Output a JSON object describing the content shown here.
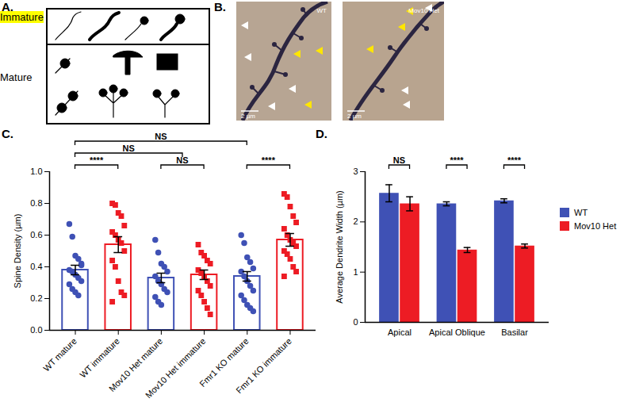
{
  "panels": {
    "A": {
      "title": "A.",
      "rows": [
        {
          "label": "Immature",
          "highlight": "#ffff00"
        },
        {
          "label": "Mature"
        }
      ]
    },
    "B": {
      "title": "B.",
      "images": [
        {
          "label": "WT",
          "scale_bar": "2 µm"
        },
        {
          "label": "Mov10 Het",
          "scale_bar": "2 µm"
        }
      ]
    }
  },
  "chart_data": [
    {
      "type": "bar",
      "title": "C.",
      "ylabel": "Spine Density (µm)",
      "categories": [
        "WT mature",
        "WT immature",
        "Mov10 Het mature",
        "Mov10 Het immature",
        "Fmr1 KO mature",
        "Fmr1 KO immature"
      ],
      "values": [
        0.38,
        0.54,
        0.33,
        0.35,
        0.34,
        0.57
      ],
      "errors": [
        0.03,
        0.05,
        0.03,
        0.03,
        0.03,
        0.04
      ],
      "points": [
        [
          0.67,
          0.59,
          0.47,
          0.45,
          0.41,
          0.38,
          0.37,
          0.35,
          0.33,
          0.31,
          0.29,
          0.26,
          0.24,
          0.22,
          0.42
        ],
        [
          0.8,
          0.79,
          0.74,
          0.72,
          0.66,
          0.62,
          0.6,
          0.57,
          0.55,
          0.5,
          0.44,
          0.4,
          0.31,
          0.24,
          0.22,
          0.18
        ],
        [
          0.57,
          0.49,
          0.42,
          0.4,
          0.37,
          0.34,
          0.31,
          0.29,
          0.26,
          0.24,
          0.21,
          0.18,
          0.16
        ],
        [
          0.54,
          0.49,
          0.47,
          0.44,
          0.42,
          0.38,
          0.36,
          0.34,
          0.31,
          0.28,
          0.25,
          0.22,
          0.18,
          0.14,
          0.1
        ],
        [
          0.6,
          0.55,
          0.46,
          0.43,
          0.39,
          0.37,
          0.34,
          0.31,
          0.28,
          0.25,
          0.22,
          0.19,
          0.16,
          0.14,
          0.12
        ],
        [
          0.86,
          0.84,
          0.78,
          0.72,
          0.68,
          0.64,
          0.6,
          0.57,
          0.55,
          0.53,
          0.5,
          0.48,
          0.45,
          0.4,
          0.37,
          0.34
        ]
      ],
      "colors": [
        "#3f51b5",
        "#ed1c24",
        "#3f51b5",
        "#ed1c24",
        "#3f51b5",
        "#ed1c24"
      ],
      "marker": [
        "circle",
        "square",
        "circle",
        "square",
        "circle",
        "square"
      ],
      "ylim": [
        0,
        1
      ],
      "yticks": [
        {
          "value": 0,
          "label": "0.0"
        },
        0.2,
        0.4,
        0.6,
        0.8,
        {
          "value": 1,
          "label": "1.0"
        }
      ],
      "annotations": [
        {
          "text": "****",
          "from": "WT mature",
          "to": "WT immature"
        },
        {
          "text": "NS",
          "from": "Mov10 Het mature",
          "to": "Mov10 Het immature"
        },
        {
          "text": "****",
          "from": "Fmr1 KO mature",
          "to": "Fmr1 KO immature"
        },
        {
          "text": "NS",
          "from": "WT mature",
          "to": [
            "Mov10 Het mature",
            "Mov10 Het immature"
          ]
        },
        {
          "text": "NS",
          "from": "WT mature",
          "to": "Fmr1 KO mature"
        }
      ]
    },
    {
      "type": "bar",
      "title": "D.",
      "ylabel": "Average Dendrite Width (µm)",
      "categories": [
        "Apical",
        "Apical Oblique",
        "Basilar"
      ],
      "series": [
        {
          "name": "WT",
          "color": "#3f51b5",
          "values": [
            2.57,
            2.36,
            2.42
          ],
          "errors": [
            0.17,
            0.04,
            0.04
          ]
        },
        {
          "name": "Mov10 Het",
          "color": "#ed1c24",
          "values": [
            2.36,
            1.44,
            1.52
          ],
          "errors": [
            0.14,
            0.05,
            0.04
          ]
        }
      ],
      "ylim": [
        0,
        3
      ],
      "yticks": [
        0,
        1,
        2,
        3
      ],
      "legend": "right",
      "annotations": [
        {
          "text": "NS",
          "category": "Apical"
        },
        {
          "text": "****",
          "category": "Apical Oblique"
        },
        {
          "text": "****",
          "category": "Basilar"
        }
      ]
    }
  ]
}
